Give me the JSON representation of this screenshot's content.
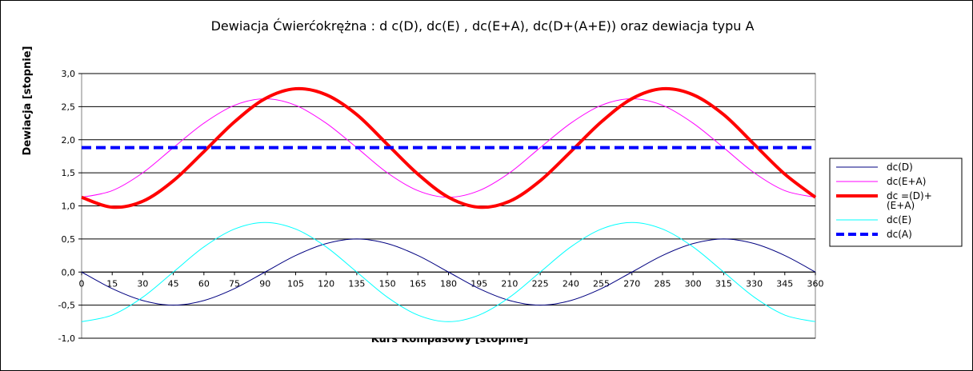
{
  "chart_data": {
    "type": "line",
    "title": "Dewiacja Ćwierćokrężna : d c(D), dc(E) , dc(E+A), dc(D+(A+E)) oraz dewiacja typu A",
    "xlabel": "Kurs Kompasowy  [stopnie]",
    "ylabel": "Dewiacja  [stopnie]",
    "xlim": [
      0,
      360
    ],
    "ylim": [
      -1.0,
      3.0
    ],
    "x_ticks": [
      "0",
      "15",
      "30",
      "45",
      "60",
      "75",
      "90",
      "105",
      "120",
      "135",
      "150",
      "165",
      "180",
      "195",
      "210",
      "225",
      "240",
      "255",
      "270",
      "285",
      "300",
      "315",
      "330",
      "345",
      "360"
    ],
    "y_ticks": [
      "3,0",
      "2,5",
      "2,0",
      "1,5",
      "1,0",
      "0,5",
      "0,0",
      "-0,5",
      "-1,0"
    ],
    "grid": "horizontal",
    "legend_position": "right",
    "x": [
      0,
      15,
      30,
      45,
      60,
      75,
      90,
      105,
      120,
      135,
      150,
      165,
      180,
      195,
      210,
      225,
      240,
      255,
      270,
      285,
      300,
      315,
      330,
      345,
      360
    ],
    "series": [
      {
        "name": "dc(D)",
        "color": "#000080",
        "style": "solid",
        "width": "thin",
        "values": [
          0.0,
          -0.25,
          -0.43,
          -0.5,
          -0.43,
          -0.25,
          0.0,
          0.25,
          0.43,
          0.5,
          0.43,
          0.25,
          0.0,
          -0.25,
          -0.43,
          -0.5,
          -0.43,
          -0.25,
          0.0,
          0.25,
          0.43,
          0.5,
          0.43,
          0.25,
          0.0
        ]
      },
      {
        "name": "dc(E+A)",
        "color": "#ff00ff",
        "style": "solid",
        "width": "thin",
        "values": [
          1.13,
          1.23,
          1.5,
          1.88,
          2.25,
          2.52,
          2.62,
          2.52,
          2.25,
          1.88,
          1.5,
          1.23,
          1.13,
          1.23,
          1.5,
          1.88,
          2.25,
          2.52,
          2.62,
          2.52,
          2.25,
          1.88,
          1.5,
          1.23,
          1.13
        ]
      },
      {
        "name": "dc =(D)+ (E+A)",
        "legend_lines": [
          "dc =(D)+",
          "(E+A)"
        ],
        "color": "#ff0000",
        "style": "solid",
        "width": "thick",
        "values": [
          1.13,
          0.98,
          1.07,
          1.38,
          1.82,
          2.27,
          2.62,
          2.77,
          2.68,
          2.38,
          1.93,
          1.48,
          1.13,
          0.98,
          1.07,
          1.38,
          1.82,
          2.27,
          2.62,
          2.77,
          2.68,
          2.38,
          1.93,
          1.48,
          1.13
        ]
      },
      {
        "name": "dc(E)",
        "color": "#00ffff",
        "style": "solid",
        "width": "thin",
        "values": [
          -0.75,
          -0.65,
          -0.38,
          0.0,
          0.38,
          0.65,
          0.75,
          0.65,
          0.38,
          0.0,
          -0.38,
          -0.65,
          -0.75,
          -0.65,
          -0.38,
          0.0,
          0.38,
          0.65,
          0.75,
          0.65,
          0.38,
          0.0,
          -0.38,
          -0.65,
          -0.75
        ]
      },
      {
        "name": "dc(A)",
        "color": "#0000ff",
        "style": "dashed",
        "width": "thick",
        "values": [
          1.88,
          1.88,
          1.88,
          1.88,
          1.88,
          1.88,
          1.88,
          1.88,
          1.88,
          1.88,
          1.88,
          1.88,
          1.88,
          1.88,
          1.88,
          1.88,
          1.88,
          1.88,
          1.88,
          1.88,
          1.88,
          1.88,
          1.88,
          1.88,
          1.88
        ]
      }
    ]
  }
}
